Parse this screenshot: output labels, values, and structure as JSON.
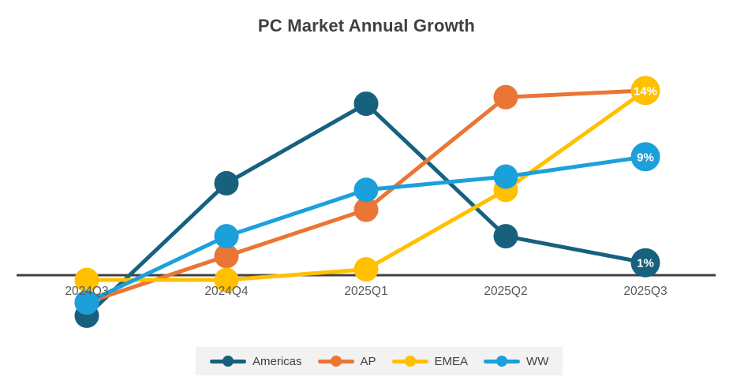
{
  "chart_data": {
    "type": "line",
    "title": "PC Market Annual Growth",
    "categories": [
      "2024Q3",
      "2024Q4",
      "2025Q1",
      "2025Q2",
      "2025Q3"
    ],
    "series": [
      {
        "name": "Americas",
        "color": "#17617F",
        "values": [
          -3,
          7,
          13,
          3,
          1
        ],
        "end_label": "1%"
      },
      {
        "name": "AP",
        "color": "#E97634",
        "values": [
          -2,
          1.5,
          5,
          13.5,
          14
        ],
        "end_label": ""
      },
      {
        "name": "EMEA",
        "color": "#FFC000",
        "values": [
          -0.3,
          -0.3,
          0.5,
          6.5,
          14
        ],
        "end_label": "14%"
      },
      {
        "name": "WW",
        "color": "#1CA0DB",
        "values": [
          -2,
          3,
          6.5,
          7.5,
          9
        ],
        "end_label": "9%"
      }
    ],
    "xlabel": "",
    "ylabel": "",
    "ylim": [
      -4,
      15
    ],
    "y_axis_hidden": true,
    "gridlines": false,
    "legend_position": "bottom",
    "axis_color": "#404040",
    "tick_label_color": "#595959",
    "data_label_color": "#ffffff",
    "legend_background": "#f2f2f2"
  }
}
